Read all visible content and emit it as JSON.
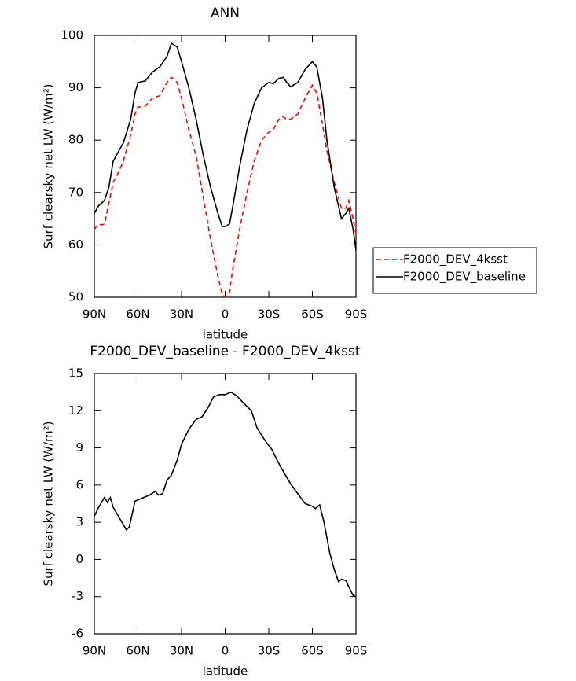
{
  "chart_data": [
    {
      "type": "line",
      "title": "ANN",
      "xlabel": "latitude",
      "ylabel": "Surf clearsky net LW (W/m²)",
      "x": [
        90,
        87,
        85,
        83,
        80,
        77,
        75,
        73,
        70,
        65,
        62,
        60,
        55,
        50,
        45,
        40,
        37,
        33,
        30,
        25,
        20,
        15,
        10,
        5,
        2,
        0,
        -3,
        -5,
        -10,
        -15,
        -20,
        -25,
        -30,
        -33,
        -37,
        -40,
        -42,
        -45,
        -50,
        -55,
        -60,
        -63,
        -67,
        -70,
        -75,
        -80,
        -83,
        -85,
        -88,
        -90
      ],
      "xlim": [
        90,
        -90
      ],
      "xticks": [
        {
          "value": 90,
          "label": "90N"
        },
        {
          "value": 60,
          "label": "60N"
        },
        {
          "value": 30,
          "label": "30N"
        },
        0,
        {
          "value": -30,
          "label": "30S"
        },
        {
          "value": -60,
          "label": "60S"
        },
        {
          "value": -90,
          "label": "90S"
        }
      ],
      "ylim": [
        50,
        100
      ],
      "yticks": [
        50,
        60,
        70,
        80,
        90,
        100
      ],
      "legend": "right",
      "series": [
        {
          "name": "F2000_DEV_4ksst",
          "color": "#ff0000",
          "line_style": "dashed",
          "values": [
            63,
            64,
            63.8,
            64,
            68,
            72,
            73,
            74,
            76,
            81,
            85,
            86.3,
            86.5,
            88,
            88.5,
            91,
            92,
            91,
            88,
            82,
            77,
            69,
            61,
            54,
            50.5,
            50,
            51,
            55,
            63,
            70,
            76,
            80,
            81.5,
            82,
            84,
            84.5,
            84,
            84,
            85,
            88,
            90.5,
            89,
            83,
            78,
            72,
            67,
            67,
            68.5,
            65,
            62
          ]
        },
        {
          "name": "F2000_DEV_baseline",
          "color": "#000000",
          "line_style": "solid",
          "values": [
            66,
            67.5,
            68,
            68.5,
            71,
            76,
            77,
            78,
            79.5,
            84,
            89,
            91,
            91.3,
            93,
            94,
            96,
            98.5,
            97.8,
            95,
            90,
            84,
            77,
            71,
            66,
            63.5,
            63.5,
            64,
            67,
            75,
            82,
            87,
            90,
            91,
            90.8,
            91.8,
            92,
            91.2,
            90.2,
            91,
            93.5,
            95,
            94,
            88,
            80,
            71,
            65,
            66,
            67,
            63,
            59
          ]
        }
      ]
    },
    {
      "type": "line",
      "title": "F2000_DEV_baseline - F2000_DEV_4ksst",
      "xlabel": "latitude",
      "ylabel": "Surf clearsky net LW (W/m²)",
      "x": [
        90,
        87,
        83,
        81,
        79,
        77,
        75,
        72,
        68,
        66,
        62,
        58,
        52,
        48,
        46,
        43,
        40,
        37,
        33,
        30,
        25,
        20,
        16,
        12,
        8,
        4,
        0,
        -4,
        -8,
        -12,
        -18,
        -22,
        -28,
        -32,
        -38,
        -45,
        -50,
        -55,
        -60,
        -62,
        -65,
        -68,
        -72,
        -75,
        -78,
        -80,
        -83,
        -85,
        -88,
        -90
      ],
      "xlim": [
        90,
        -90
      ],
      "xticks": [
        {
          "value": 90,
          "label": "90N"
        },
        {
          "value": 60,
          "label": "60N"
        },
        {
          "value": 30,
          "label": "30N"
        },
        0,
        {
          "value": -30,
          "label": "30S"
        },
        {
          "value": -60,
          "label": "60S"
        },
        {
          "value": -90,
          "label": "90S"
        }
      ],
      "ylim": [
        -6,
        15
      ],
      "yticks": [
        -6,
        -3,
        0,
        3,
        6,
        9,
        12,
        15
      ],
      "series": [
        {
          "color": "#000000",
          "line_style": "solid",
          "values": [
            3.5,
            4.2,
            5,
            4.6,
            5,
            4.2,
            3.8,
            3.2,
            2.4,
            2.6,
            4.7,
            4.9,
            5.2,
            5.5,
            5.2,
            5.3,
            6.4,
            6.8,
            8,
            9.3,
            10.5,
            11.3,
            11.5,
            12.2,
            13.1,
            13.3,
            13.3,
            13.5,
            13.2,
            12.7,
            12,
            10.6,
            9.5,
            8.9,
            7.5,
            6.1,
            5.3,
            4.5,
            4.3,
            4.1,
            4.4,
            3,
            0.5,
            -0.8,
            -1.8,
            -1.6,
            -1.7,
            -2.2,
            -2.9,
            -3
          ]
        }
      ]
    }
  ]
}
